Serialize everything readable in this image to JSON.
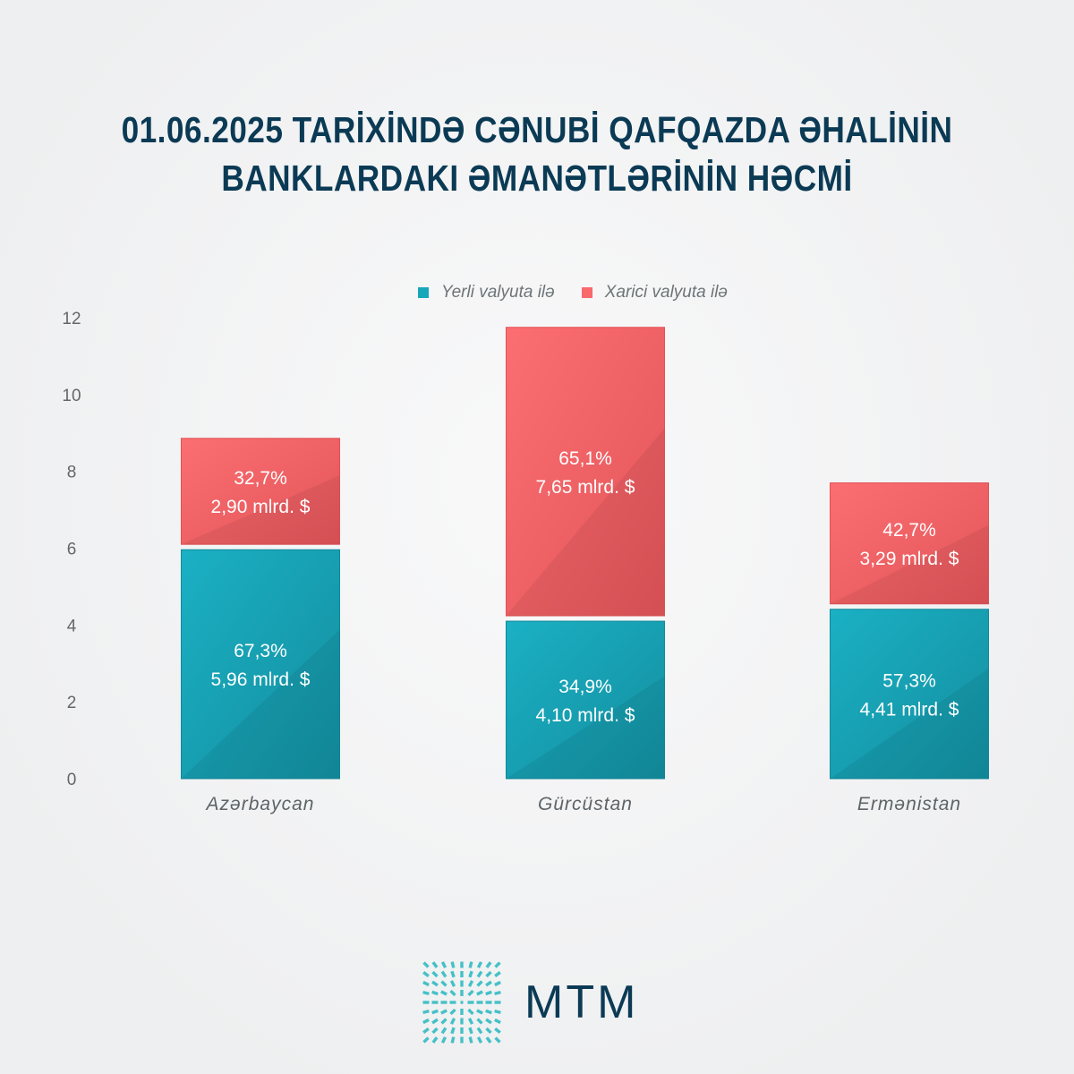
{
  "title_lines": [
    "01.06.2025 TARİXİNDƏ CƏNUBİ QAFQAZDA ƏHALİNİN",
    "BANKLARDAKI ƏMANƏTLƏRİNİN HƏCMİ"
  ],
  "brand": "MTM",
  "colors": {
    "local": "#17a7bb",
    "foreign": "#f9686b",
    "title": "#0b3a55"
  },
  "chart_data": {
    "type": "bar",
    "stacked": true,
    "title": "01.06.2025 TARİXİNDƏ CƏNUBİ QAFQAZDA ƏHALİNİN BANKLARDAKI ƏMANƏTLƏRİNİN HƏCMİ",
    "categories": [
      "Azərbaycan",
      "Gürcüstan",
      "Ermənistan"
    ],
    "series": [
      {
        "name": "Yerli valyuta ilə",
        "values": [
          5.96,
          4.1,
          4.41
        ],
        "shares": [
          "67,3%",
          "34,9%",
          "57,3%"
        ],
        "labels": [
          "5,96 mlrd. $",
          "4,10 mlrd. $",
          "4,41 mlrd. $"
        ]
      },
      {
        "name": "Xarici valyuta ilə",
        "values": [
          2.9,
          7.65,
          3.29
        ],
        "shares": [
          "32,7%",
          "65,1%",
          "42,7%"
        ],
        "labels": [
          "2,90 mlrd. $",
          "7,65 mlrd. $",
          "3,29 mlrd. $"
        ]
      }
    ],
    "yticks": [
      "0",
      "2",
      "4",
      "6",
      "8",
      "10",
      "12"
    ],
    "ylim": [
      0,
      12
    ],
    "xlabel": "",
    "ylabel": "",
    "grid": false,
    "legend": "top-center"
  }
}
